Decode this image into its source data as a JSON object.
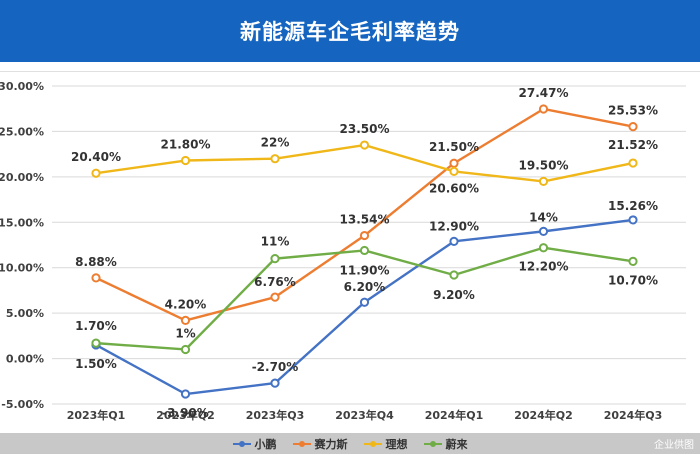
{
  "header": {
    "title": "新能源车企毛利率趋势"
  },
  "footer": {
    "watermark": "企业供图"
  },
  "chart_data": {
    "type": "line",
    "title": "新能源车企毛利率趋势",
    "xlabel": "",
    "ylabel": "",
    "categories": [
      "2023年Q1",
      "2023年Q2",
      "2023年Q3",
      "2023年Q4",
      "2024年Q1",
      "2024年Q2",
      "2024年Q3"
    ],
    "y_ticks": [
      "-5.00%",
      "0.00%",
      "5.00%",
      "10.00%",
      "15.00%",
      "20.00%",
      "25.00%",
      "30.00%"
    ],
    "ylim": [
      -5,
      30
    ],
    "grid": true,
    "legend_position": "bottom",
    "series": [
      {
        "name": "小鹏",
        "color": "#4472c4",
        "values": [
          1.5,
          -3.9,
          -2.7,
          6.2,
          12.9,
          14.0,
          15.26
        ],
        "labels": [
          "1.50%",
          "-3.90%",
          "-2.70%",
          "6.20%",
          "12.90%",
          "14%",
          "15.26%"
        ]
      },
      {
        "name": "赛力斯",
        "color": "#ed7d31",
        "values": [
          8.88,
          4.2,
          6.76,
          13.54,
          21.5,
          27.47,
          25.53
        ],
        "labels": [
          "8.88%",
          "4.20%",
          "6.76%",
          "13.54%",
          "21.50%",
          "27.47%",
          "25.53%"
        ]
      },
      {
        "name": "理想",
        "color": "#f0b719",
        "values": [
          20.4,
          21.8,
          22.0,
          23.5,
          20.6,
          19.5,
          21.52
        ],
        "labels": [
          "20.40%",
          "21.80%",
          "22%",
          "23.50%",
          "20.60%",
          "19.50%",
          "21.52%"
        ]
      },
      {
        "name": "蔚来",
        "color": "#70ad47",
        "values": [
          1.7,
          1.0,
          11.0,
          11.9,
          9.2,
          12.2,
          10.7
        ],
        "labels": [
          "1.70%",
          "1%",
          "11%",
          "11.90%",
          "9.20%",
          "12.20%",
          "10.70%"
        ]
      }
    ]
  }
}
